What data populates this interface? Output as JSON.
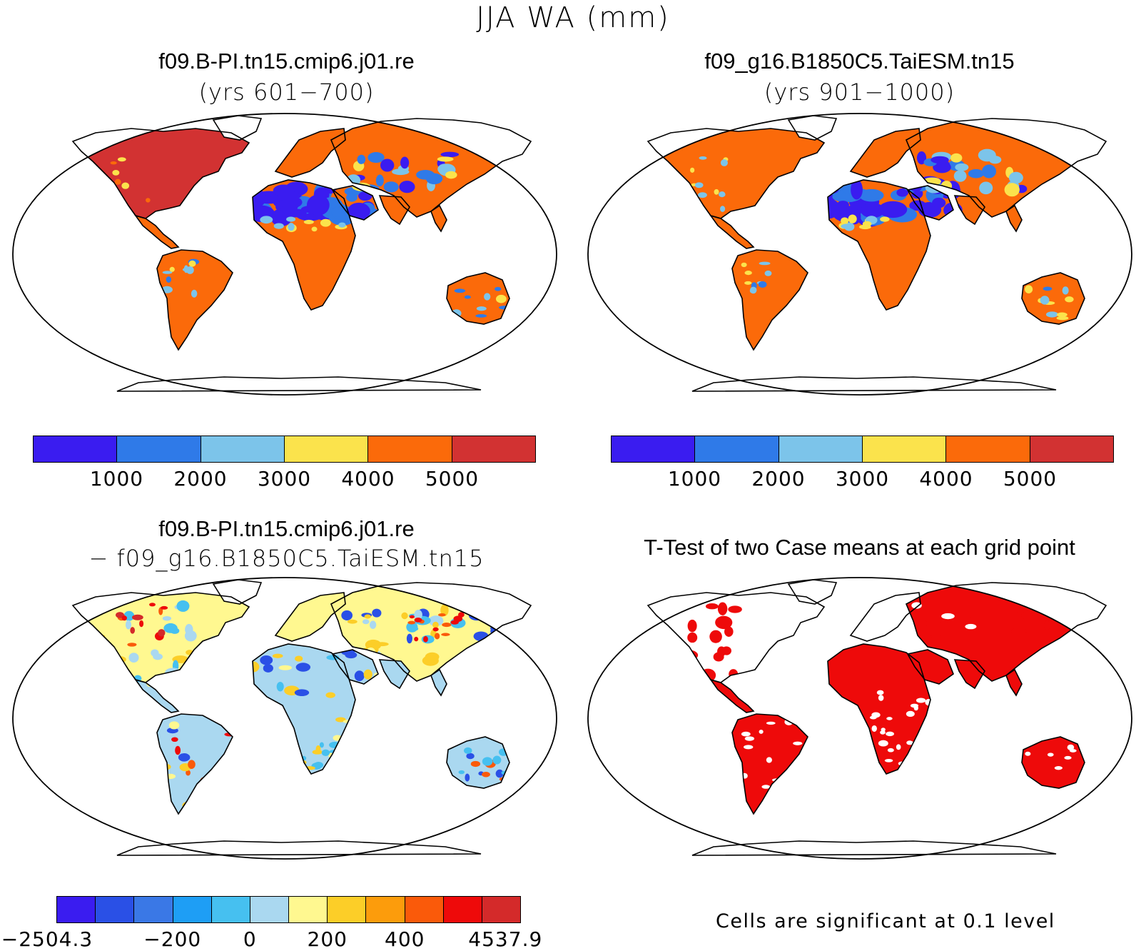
{
  "title": "JJA WA (mm)",
  "panels": {
    "top_left": {
      "title": "f09.B-PI.tn15.cmip6.j01.re",
      "subtitle": "(yrs 601−700)"
    },
    "top_right": {
      "title": "f09_g16.B1850C5.TaiESM.tn15",
      "subtitle": "(yrs 901−1000)"
    },
    "bottom_left": {
      "title": "f09.B-PI.tn15.cmip6.j01.re",
      "subtitle": "− f09_g16.B1850C5.TaiESM.tn15"
    },
    "bottom_right": {
      "title": "T-Test of two Case means at each grid point"
    }
  },
  "colorbar_top": {
    "colors": [
      "#3a1cf0",
      "#2f7ae8",
      "#7cc4ea",
      "#fbe34c",
      "#fb6a0a",
      "#d23232"
    ],
    "labels": [
      "1000",
      "2000",
      "3000",
      "4000",
      "5000"
    ]
  },
  "colorbar_diff": {
    "colors": [
      "#3a1cf0",
      "#2a50e6",
      "#3a78e6",
      "#1e9ef5",
      "#46c0f0",
      "#aad8f0",
      "#fff890",
      "#fcce28",
      "#fc9c0c",
      "#fa5a0a",
      "#ee0a0a",
      "#d42a2a"
    ],
    "labels": [
      "−2504.3",
      "−200",
      "0",
      "200",
      "400",
      "4537.9"
    ]
  },
  "ttest_note": "Cells are significant at 0.1 level",
  "map_colors": {
    "ocean": "#ffffff",
    "coast": "#000000",
    "ttest_significant": "#ee0a0a",
    "tl_base": "#fb6a0a",
    "tl_na": "#d23232",
    "tl_desert": "#3a1cf0",
    "tl_desert2": "#2f7ae8",
    "tr_base": "#fb6a0a",
    "tr_desert": "#3a1cf0",
    "tr_desert2": "#2f7ae8",
    "diff_north": "#fff890",
    "diff_south": "#aad8f0",
    "diff_pos": "#ee0a0a",
    "diff_neg": "#2a50e6"
  }
}
